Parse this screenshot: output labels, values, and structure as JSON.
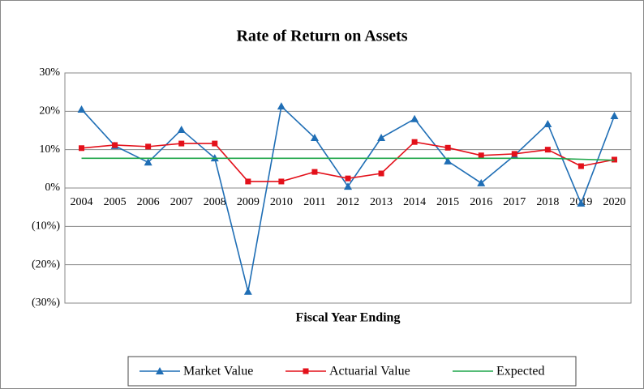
{
  "chart_data": {
    "type": "line",
    "title": "Rate of Return on Assets",
    "x_label": "Fiscal Year Ending",
    "categories": [
      "2004",
      "2005",
      "2006",
      "2007",
      "2008",
      "2009",
      "2010",
      "2011",
      "2012",
      "2013",
      "2014",
      "2015",
      "2016",
      "2017",
      "2018",
      "2019",
      "2020"
    ],
    "series": [
      {
        "name": "Market Value",
        "color": "#1f6eb5",
        "marker": "triangle",
        "values": [
          20.5,
          11,
          6.7,
          15.2,
          7.8,
          -27,
          21.3,
          13.1,
          0.4,
          13.1,
          18,
          7,
          1.3,
          8.5,
          16.7,
          -4,
          18.8
        ]
      },
      {
        "name": "Actuarial Value",
        "color": "#e3101a",
        "marker": "square",
        "values": [
          10.4,
          11.2,
          10.8,
          11.6,
          11.6,
          1.7,
          1.7,
          4.2,
          2.5,
          3.8,
          12,
          10.5,
          8.5,
          8.9,
          10,
          5.7,
          7.4
        ]
      },
      {
        "name": "Expected",
        "color": "#1fa64a",
        "marker": "none",
        "values": [
          7.75,
          7.75,
          7.75,
          7.75,
          7.75,
          7.75,
          7.75,
          7.75,
          7.75,
          7.75,
          7.75,
          7.75,
          7.75,
          7.75,
          7.75,
          7.5,
          7.25
        ]
      }
    ],
    "ylim": [
      -30,
      30
    ],
    "yticks": [
      {
        "value": -30,
        "label": "(30%)"
      },
      {
        "value": -20,
        "label": "(20%)"
      },
      {
        "value": -10,
        "label": "(10%)"
      },
      {
        "value": 0,
        "label": "0%"
      },
      {
        "value": 10,
        "label": "10%"
      },
      {
        "value": 20,
        "label": "20%"
      },
      {
        "value": 30,
        "label": "30%"
      }
    ],
    "grid": true,
    "legend": "bottom"
  }
}
